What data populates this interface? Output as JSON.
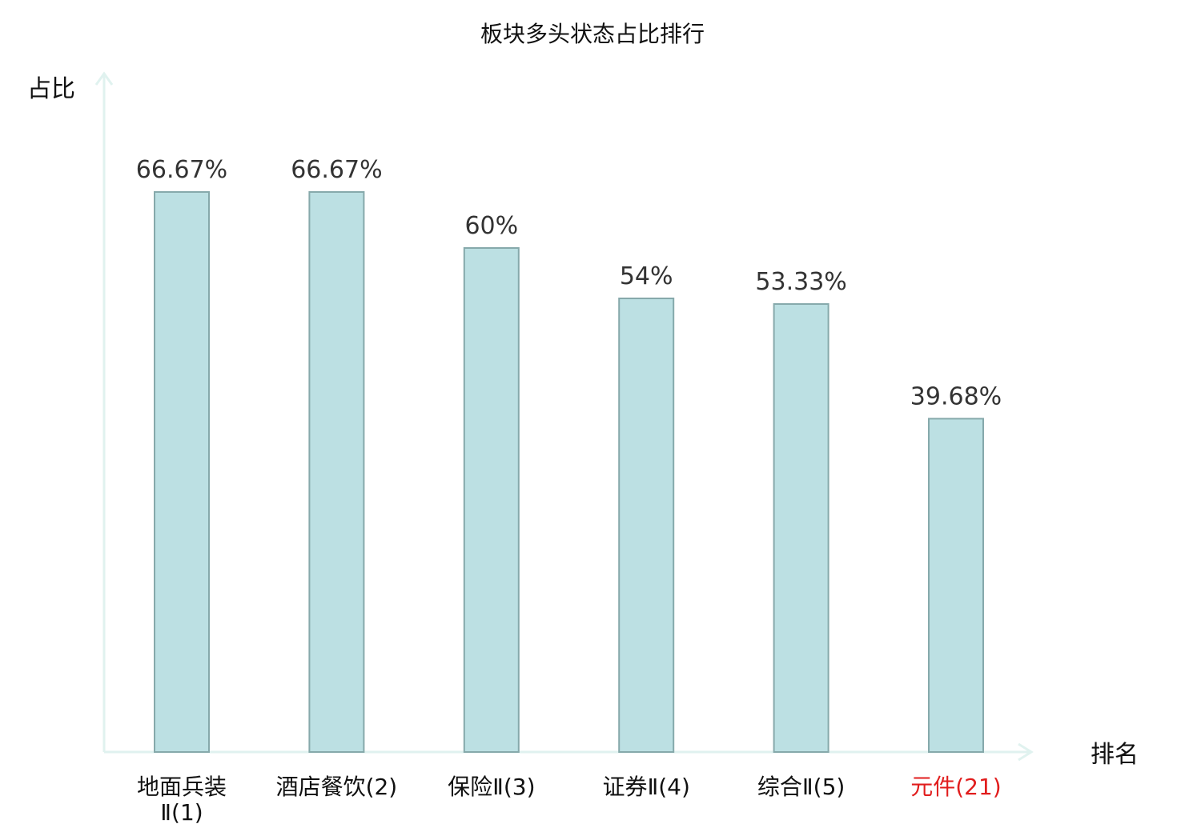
{
  "chart_data": {
    "type": "bar",
    "title": "板块多头状态占比排行",
    "ylabel": "占比",
    "xlabel": "排名",
    "ylim": [
      0,
      80
    ],
    "grid": false,
    "categories": [
      "地面兵装Ⅱ(1)",
      "酒店餐饮(2)",
      "保险Ⅱ(3)",
      "证券Ⅱ(4)",
      "综合Ⅱ(5)",
      "元件(21)"
    ],
    "tick_lines": [
      [
        "地面兵装",
        "Ⅱ(1)"
      ],
      [
        "酒店餐饮(2)"
      ],
      [
        "保险Ⅱ(3)"
      ],
      [
        "证券Ⅱ(4)"
      ],
      [
        "综合Ⅱ(5)"
      ],
      [
        "元件(21)"
      ]
    ],
    "values": [
      66.67,
      66.67,
      60,
      54,
      53.33,
      39.68
    ],
    "value_labels": [
      "66.67%",
      "66.67%",
      "60%",
      "54%",
      "53.33%",
      "39.68%"
    ],
    "highlight_index": 5,
    "colors": {
      "bar_fill": "#bce0e3",
      "bar_stroke": "#86a9ab",
      "axis": "#e0f2ef",
      "highlight_text": "#e11d1d",
      "text": "#111111"
    }
  }
}
